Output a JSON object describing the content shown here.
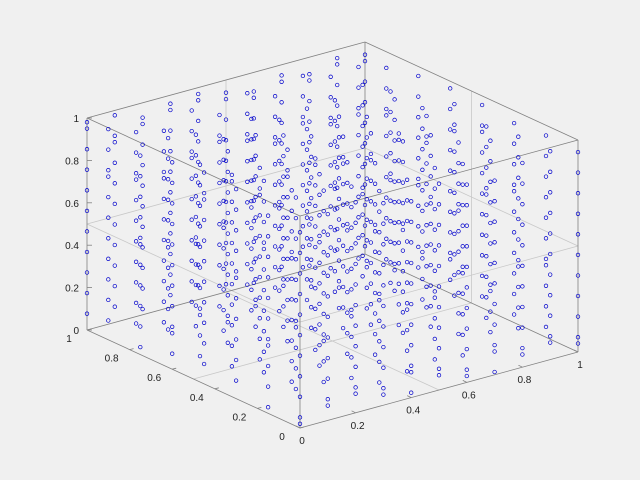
{
  "chart_data": {
    "type": "scatter",
    "title": "",
    "xlabel": "",
    "ylabel": "",
    "zlabel": "",
    "projection": "3d",
    "marker": "open-circle",
    "grid": true,
    "xlim": [
      0,
      1
    ],
    "ylim": [
      0,
      1
    ],
    "zlim": [
      0,
      1
    ],
    "x_ticks": [
      "0",
      "0.2",
      "0.4",
      "0.6",
      "0.8",
      "1"
    ],
    "y_ticks": [
      "0",
      "0.2",
      "0.4",
      "0.6",
      "0.8",
      "1"
    ],
    "z_ticks": [
      "0",
      "0.2",
      "0.4",
      "0.6",
      "0.8",
      "1"
    ],
    "point_color": "#0000cc",
    "background": "#f0f0f0",
    "series": [
      {
        "x": [
          0.0,
          0.0,
          0.0,
          0.0,
          0.0,
          0.0,
          0.0,
          0.0,
          0.1,
          0.1,
          0.1,
          0.1,
          0.1,
          0.1,
          0.1,
          0.1,
          0.2,
          0.2,
          0.2,
          0.2,
          0.2,
          0.2,
          0.2,
          0.2,
          0.3,
          0.3,
          0.3,
          0.3,
          0.3,
          0.3,
          0.3,
          0.3,
          0.4,
          0.4,
          0.4,
          0.4,
          0.4,
          0.4,
          0.4,
          0.4,
          0.5,
          0.5,
          0.5,
          0.5,
          0.5,
          0.5,
          0.5,
          0.5,
          0.6,
          0.6,
          0.6,
          0.6,
          0.6,
          0.6,
          0.6,
          0.6,
          0.7,
          0.7,
          0.7,
          0.7,
          0.7,
          0.7,
          0.7,
          0.7,
          0.8,
          0.8,
          0.8,
          0.8,
          0.8,
          0.8,
          0.8,
          0.8,
          0.9,
          0.9,
          0.9,
          0.9,
          0.9,
          0.9,
          0.9,
          0.9,
          1.0,
          1.0,
          1.0,
          1.0,
          1.0,
          1.0,
          1.0,
          1.0
        ],
        "y": [
          0.0,
          0.15,
          0.3,
          0.45,
          0.6,
          0.75,
          0.9,
          1.0,
          0.0,
          0.15,
          0.3,
          0.45,
          0.6,
          0.75,
          0.9,
          1.0,
          0.0,
          0.15,
          0.3,
          0.45,
          0.6,
          0.75,
          0.9,
          1.0,
          0.0,
          0.15,
          0.3,
          0.45,
          0.6,
          0.75,
          0.9,
          1.0,
          0.0,
          0.15,
          0.3,
          0.45,
          0.6,
          0.75,
          0.9,
          1.0,
          0.0,
          0.15,
          0.3,
          0.45,
          0.6,
          0.75,
          0.9,
          1.0,
          0.0,
          0.15,
          0.3,
          0.45,
          0.6,
          0.75,
          0.9,
          1.0,
          0.0,
          0.15,
          0.3,
          0.45,
          0.6,
          0.75,
          0.9,
          1.0,
          0.0,
          0.15,
          0.3,
          0.45,
          0.6,
          0.75,
          0.9,
          1.0,
          0.0,
          0.15,
          0.3,
          0.45,
          0.6,
          0.75,
          0.9,
          1.0,
          0.0,
          0.15,
          0.3,
          0.45,
          0.6,
          0.75,
          0.9,
          1.0
        ],
        "z": [
          0.05,
          0.35,
          0.6,
          0.9,
          0.2,
          0.55,
          0.8,
          0.98,
          0.1,
          0.4,
          0.7,
          0.95,
          0.25,
          0.5,
          0.75,
          0.88,
          0.12,
          0.3,
          0.62,
          0.85,
          0.18,
          0.48,
          0.72,
          0.93,
          0.08,
          0.38,
          0.66,
          0.9,
          0.22,
          0.52,
          0.78,
          0.96,
          0.15,
          0.42,
          0.68,
          0.92,
          0.28,
          0.58,
          0.82,
          0.97,
          0.1,
          0.34,
          0.64,
          0.89,
          0.24,
          0.54,
          0.79,
          0.94,
          0.06,
          0.36,
          0.61,
          0.87,
          0.2,
          0.46,
          0.74,
          0.91,
          0.14,
          0.44,
          0.7,
          0.93,
          0.26,
          0.56,
          0.8,
          0.95,
          0.09,
          0.32,
          0.63,
          0.88,
          0.21,
          0.5,
          0.76,
          0.92,
          0.11,
          0.4,
          0.67,
          0.9,
          0.23,
          0.53,
          0.77,
          0.96,
          0.07,
          0.37,
          0.65,
          0.86,
          0.19,
          0.47,
          0.73,
          0.94
        ]
      }
    ]
  }
}
